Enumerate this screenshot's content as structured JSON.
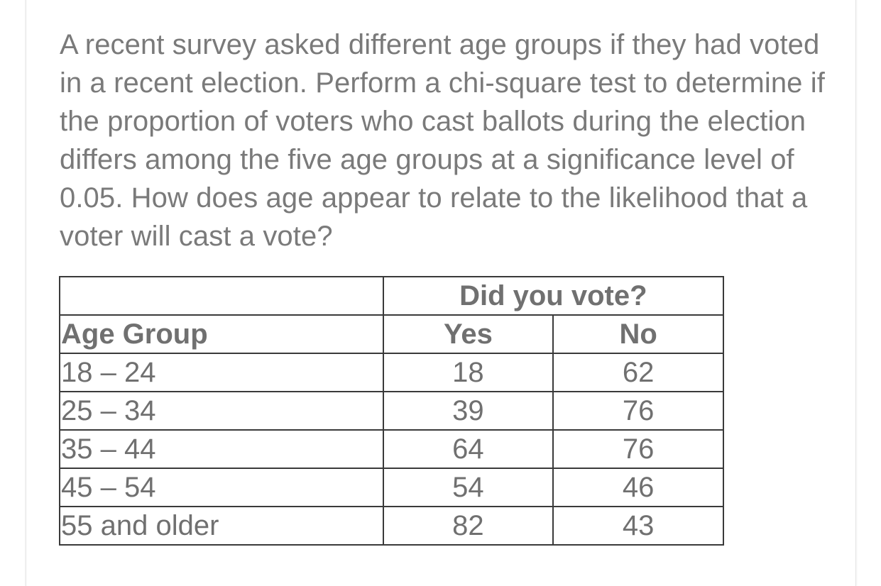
{
  "question": "A recent survey asked different age groups if they had voted in a recent election. Perform a chi-square test to determine if the proportion of voters who cast ballots during the election differs among the five age groups at a significance level of 0.05. How does age appear to relate to the likelihood that a voter will cast a vote?",
  "table": {
    "group_header": "Did you vote?",
    "headers": {
      "age": "Age Group",
      "yes": "Yes",
      "no": "No"
    },
    "rows": [
      {
        "age": "18 – 24",
        "yes": "18",
        "no": "62"
      },
      {
        "age": "25 – 34",
        "yes": "39",
        "no": "76"
      },
      {
        "age": "35 – 44",
        "yes": "64",
        "no": "76"
      },
      {
        "age": "45 – 54",
        "yes": "54",
        "no": "46"
      },
      {
        "age": "55 and older",
        "yes": "82",
        "no": "43"
      }
    ]
  }
}
